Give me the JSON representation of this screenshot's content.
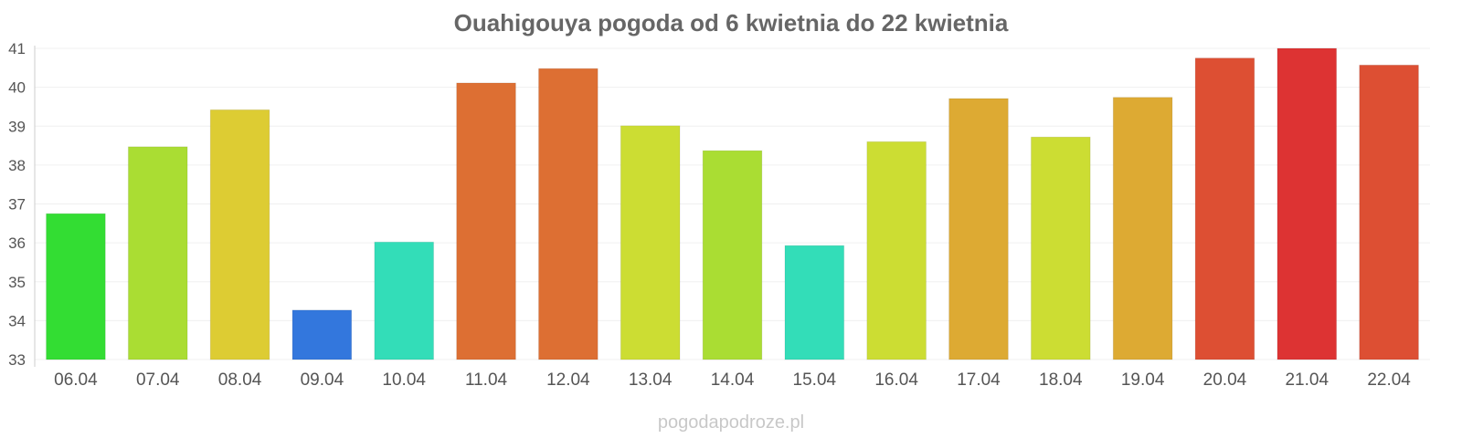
{
  "chart_data": {
    "type": "bar",
    "title": "Ouahigouya pogoda od 6 kwietnia do 22 kwietnia",
    "xlabel": "",
    "ylabel": "",
    "categories": [
      "06.04",
      "07.04",
      "08.04",
      "09.04",
      "10.04",
      "11.04",
      "12.04",
      "13.04",
      "14.04",
      "15.04",
      "16.04",
      "17.04",
      "18.04",
      "19.04",
      "20.04",
      "21.04",
      "22.04"
    ],
    "values": [
      36.75,
      38.47,
      39.42,
      34.27,
      36.02,
      40.11,
      40.48,
      39.01,
      38.37,
      35.93,
      38.6,
      39.71,
      38.72,
      39.74,
      40.75,
      41.0,
      40.57
    ],
    "colors": [
      "#33dd33",
      "#aadd33",
      "#ddcc33",
      "#3377dd",
      "#33ddb8",
      "#dd6f33",
      "#dd6f33",
      "#ccdd33",
      "#aadd33",
      "#33ddb8",
      "#ccdd33",
      "#ddaa33",
      "#ccdd33",
      "#ddaa33",
      "#dd4f33",
      "#dd3333",
      "#dd4f33"
    ],
    "ylim": [
      33,
      41
    ],
    "yticks": [
      33,
      34,
      35,
      36,
      37,
      38,
      39,
      40,
      41
    ],
    "grid": true,
    "legend": "none"
  },
  "watermark": "pogodapodroze.pl"
}
